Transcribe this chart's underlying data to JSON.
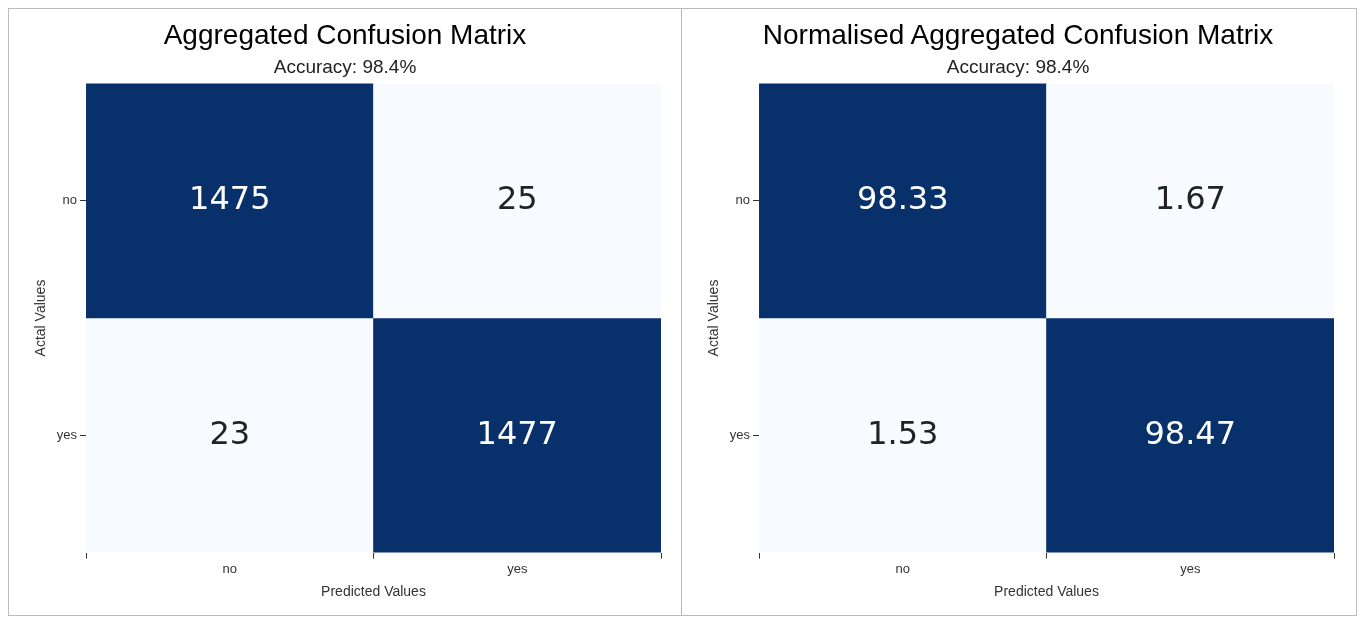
{
  "chart_data": [
    {
      "type": "heatmap",
      "title": "Aggregated Confusion Matrix",
      "subtitle": "Accuracy: 98.4%",
      "xlabel": "Predicted Values",
      "ylabel": "Actal Values",
      "categories": [
        "no",
        "yes"
      ],
      "y_categories": [
        "no",
        "yes"
      ],
      "cells": [
        [
          1475,
          25
        ],
        [
          23,
          1477
        ]
      ],
      "colors": [
        "#f7fbff",
        "#08306b"
      ],
      "data_labels": true
    },
    {
      "type": "heatmap",
      "title": "Normalised Aggregated Confusion Matrix",
      "subtitle": "Accuracy: 98.4%",
      "xlabel": "Predicted Values",
      "ylabel": "Actal Values",
      "categories": [
        "no",
        "yes"
      ],
      "y_categories": [
        "no",
        "yes"
      ],
      "cells": [
        [
          98.33,
          1.67
        ],
        [
          1.53,
          98.47
        ]
      ],
      "colors": [
        "#f7fbff",
        "#08306b"
      ],
      "data_labels": true
    }
  ]
}
